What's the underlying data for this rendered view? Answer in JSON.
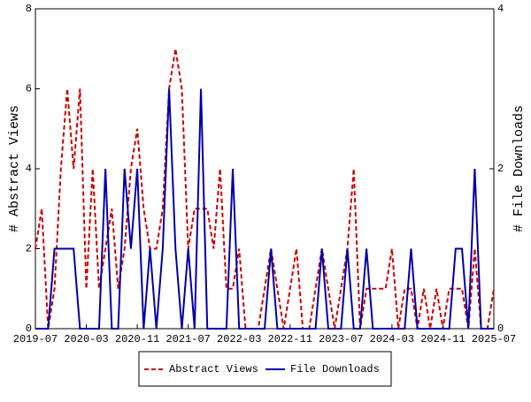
{
  "chart_data": {
    "type": "line",
    "y_label": "# Abstract Views",
    "y2_label": "# File Downloads",
    "categories": [
      "2019-07",
      null,
      null,
      null,
      null,
      null,
      null,
      null,
      "2020-03",
      null,
      null,
      null,
      null,
      null,
      null,
      null,
      "2020-11",
      null,
      null,
      null,
      null,
      null,
      null,
      null,
      "2021-07",
      null,
      null,
      null,
      null,
      null,
      null,
      null,
      "2022-03",
      null,
      null,
      null,
      null,
      null,
      null,
      null,
      "2022-11",
      null,
      null,
      null,
      null,
      null,
      null,
      null,
      "2023-07",
      null,
      null,
      null,
      null,
      null,
      null,
      null,
      "2024-03",
      null,
      null,
      null,
      null,
      null,
      null,
      null,
      "2024-11",
      null,
      null,
      null,
      null,
      null,
      null,
      null,
      "2025-07"
    ],
    "ylim": [
      0,
      8
    ],
    "yticks": [
      0,
      2,
      4,
      6,
      8
    ],
    "y2lim": [
      0,
      4
    ],
    "y2ticks": [
      0,
      2,
      4
    ],
    "legend": "bottom",
    "series": [
      {
        "name": "Abstract Views",
        "color": "#cc0000",
        "dashed": true,
        "values": [
          2,
          3,
          0,
          1,
          4,
          6,
          4,
          6,
          1,
          4,
          1,
          2,
          3,
          1,
          2,
          4,
          5,
          3,
          2,
          2,
          3,
          6,
          7,
          6,
          2,
          3,
          3,
          3,
          2,
          4,
          1,
          1,
          2,
          0,
          0,
          0,
          1,
          2,
          1,
          0,
          1,
          2,
          0,
          0,
          1,
          2,
          1,
          0,
          1,
          2,
          4,
          0,
          1,
          1,
          1,
          1,
          2,
          0,
          1,
          1,
          0,
          1,
          0,
          1,
          0,
          1,
          1,
          1,
          0,
          2,
          0,
          0,
          1
        ]
      },
      {
        "name": "File Downloads",
        "color": "#0000aa",
        "dashed": false,
        "axis": "y2",
        "values": [
          0,
          0,
          0,
          1,
          1,
          1,
          1,
          0,
          0,
          0,
          0,
          2,
          0,
          0,
          2,
          1,
          2,
          0,
          1,
          0,
          1,
          3,
          1,
          0,
          1,
          0,
          3,
          0,
          0,
          0,
          0,
          2,
          0,
          0,
          0,
          0,
          0,
          1,
          0,
          0,
          0,
          0,
          0,
          0,
          0,
          1,
          0,
          0,
          0,
          1,
          0,
          0,
          1,
          0,
          0,
          0,
          0,
          0,
          0,
          1,
          0,
          0,
          0,
          0,
          0,
          0,
          1,
          1,
          0,
          2,
          0,
          0,
          0
        ]
      }
    ]
  }
}
